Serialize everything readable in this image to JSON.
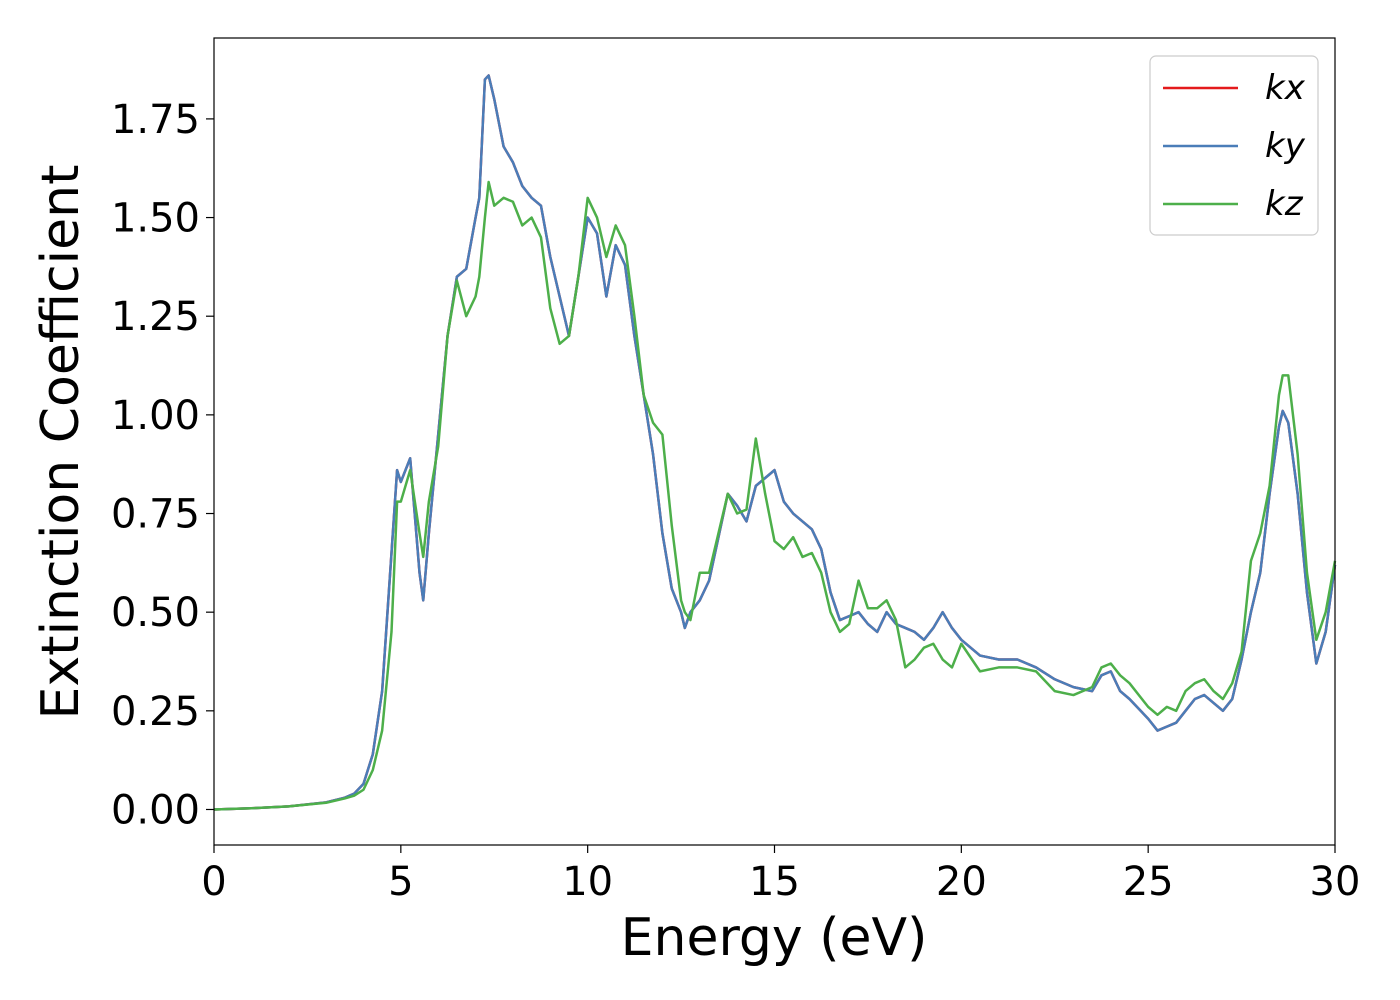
{
  "chart_data": {
    "type": "line",
    "x_label": "Energy (eV)",
    "y_label": "Extinction Coefficient",
    "x": [
      0,
      1,
      2,
      3,
      3.5,
      3.75,
      4,
      4.25,
      4.5,
      4.75,
      4.9,
      5.0,
      5.25,
      5.5,
      5.6,
      5.75,
      6,
      6.25,
      6.5,
      6.75,
      7,
      7.1,
      7.25,
      7.35,
      7.5,
      7.75,
      8,
      8.25,
      8.5,
      8.75,
      9,
      9.25,
      9.5,
      9.75,
      10,
      10.25,
      10.5,
      10.75,
      11,
      11.25,
      11.5,
      11.75,
      12,
      12.25,
      12.5,
      12.6,
      12.75,
      13,
      13.25,
      13.5,
      13.75,
      14,
      14.25,
      14.5,
      14.75,
      15,
      15.25,
      15.5,
      15.75,
      16,
      16.25,
      16.5,
      16.75,
      17,
      17.25,
      17.5,
      17.75,
      18,
      18.25,
      18.5,
      18.75,
      19,
      19.25,
      19.5,
      19.75,
      20,
      20.5,
      21,
      21.5,
      22,
      22.5,
      23,
      23.5,
      23.75,
      24,
      24.25,
      24.5,
      25,
      25.25,
      25.5,
      25.75,
      26,
      26.25,
      26.5,
      26.75,
      27,
      27.25,
      27.5,
      27.75,
      28,
      28.25,
      28.5,
      28.6,
      28.75,
      29,
      29.25,
      29.5,
      29.75,
      30
    ],
    "series": [
      {
        "name": "kx",
        "color": "#e41a1c",
        "values": [
          0,
          0.003,
          0.008,
          0.018,
          0.03,
          0.04,
          0.065,
          0.14,
          0.3,
          0.65,
          0.86,
          0.83,
          0.89,
          0.6,
          0.53,
          0.7,
          0.95,
          1.2,
          1.35,
          1.37,
          1.5,
          1.55,
          1.85,
          1.86,
          1.8,
          1.68,
          1.64,
          1.58,
          1.55,
          1.53,
          1.4,
          1.3,
          1.2,
          1.35,
          1.5,
          1.46,
          1.3,
          1.43,
          1.38,
          1.2,
          1.05,
          0.9,
          0.7,
          0.56,
          0.5,
          0.46,
          0.5,
          0.53,
          0.58,
          0.69,
          0.8,
          0.77,
          0.73,
          0.82,
          0.84,
          0.86,
          0.78,
          0.75,
          0.73,
          0.71,
          0.66,
          0.55,
          0.48,
          0.49,
          0.5,
          0.47,
          0.45,
          0.5,
          0.47,
          0.46,
          0.45,
          0.43,
          0.46,
          0.5,
          0.46,
          0.43,
          0.39,
          0.38,
          0.38,
          0.36,
          0.33,
          0.31,
          0.3,
          0.34,
          0.35,
          0.3,
          0.28,
          0.23,
          0.2,
          0.21,
          0.22,
          0.25,
          0.28,
          0.29,
          0.27,
          0.25,
          0.28,
          0.38,
          0.5,
          0.6,
          0.8,
          0.97,
          1.01,
          0.98,
          0.8,
          0.55,
          0.37,
          0.45,
          0.62
        ]
      },
      {
        "name": "ky",
        "color": "#4a7db8",
        "values": [
          0,
          0.003,
          0.008,
          0.018,
          0.03,
          0.04,
          0.065,
          0.14,
          0.3,
          0.65,
          0.86,
          0.83,
          0.89,
          0.6,
          0.53,
          0.7,
          0.95,
          1.2,
          1.35,
          1.37,
          1.5,
          1.55,
          1.85,
          1.86,
          1.8,
          1.68,
          1.64,
          1.58,
          1.55,
          1.53,
          1.4,
          1.3,
          1.2,
          1.35,
          1.5,
          1.46,
          1.3,
          1.43,
          1.38,
          1.2,
          1.05,
          0.9,
          0.7,
          0.56,
          0.5,
          0.46,
          0.5,
          0.53,
          0.58,
          0.69,
          0.8,
          0.77,
          0.73,
          0.82,
          0.84,
          0.86,
          0.78,
          0.75,
          0.73,
          0.71,
          0.66,
          0.55,
          0.48,
          0.49,
          0.5,
          0.47,
          0.45,
          0.5,
          0.47,
          0.46,
          0.45,
          0.43,
          0.46,
          0.5,
          0.46,
          0.43,
          0.39,
          0.38,
          0.38,
          0.36,
          0.33,
          0.31,
          0.3,
          0.34,
          0.35,
          0.3,
          0.28,
          0.23,
          0.2,
          0.21,
          0.22,
          0.25,
          0.28,
          0.29,
          0.27,
          0.25,
          0.28,
          0.38,
          0.5,
          0.6,
          0.8,
          0.97,
          1.01,
          0.98,
          0.8,
          0.55,
          0.37,
          0.45,
          0.62
        ]
      },
      {
        "name": "kz",
        "color": "#4daf4a",
        "values": [
          0,
          0.003,
          0.008,
          0.017,
          0.028,
          0.035,
          0.05,
          0.1,
          0.2,
          0.45,
          0.78,
          0.78,
          0.86,
          0.7,
          0.64,
          0.78,
          0.92,
          1.2,
          1.34,
          1.25,
          1.3,
          1.35,
          1.5,
          1.59,
          1.53,
          1.55,
          1.54,
          1.48,
          1.5,
          1.45,
          1.27,
          1.18,
          1.2,
          1.35,
          1.55,
          1.5,
          1.4,
          1.48,
          1.43,
          1.25,
          1.05,
          0.98,
          0.95,
          0.72,
          0.53,
          0.5,
          0.48,
          0.6,
          0.6,
          0.7,
          0.8,
          0.75,
          0.76,
          0.94,
          0.8,
          0.68,
          0.66,
          0.69,
          0.64,
          0.65,
          0.6,
          0.5,
          0.45,
          0.47,
          0.58,
          0.51,
          0.51,
          0.53,
          0.48,
          0.36,
          0.38,
          0.41,
          0.42,
          0.38,
          0.36,
          0.42,
          0.35,
          0.36,
          0.36,
          0.35,
          0.3,
          0.29,
          0.31,
          0.36,
          0.37,
          0.34,
          0.32,
          0.26,
          0.24,
          0.26,
          0.25,
          0.3,
          0.32,
          0.33,
          0.3,
          0.28,
          0.32,
          0.4,
          0.63,
          0.7,
          0.82,
          1.05,
          1.1,
          1.1,
          0.9,
          0.6,
          0.43,
          0.5,
          0.63
        ]
      }
    ],
    "xlim": [
      0,
      30
    ],
    "ylim": [
      -0.09,
      1.955
    ],
    "xticks": [
      0,
      5,
      10,
      15,
      20,
      25,
      30
    ],
    "yticks": [
      {
        "value": 0,
        "label": "0.00"
      },
      {
        "value": 0.25,
        "label": "0.25"
      },
      {
        "value": 0.5,
        "label": "0.50"
      },
      {
        "value": 0.75,
        "label": "0.75"
      },
      {
        "value": 1,
        "label": "1.00"
      },
      {
        "value": 1.25,
        "label": "1.25"
      },
      {
        "value": 1.5,
        "label": "1.50"
      },
      {
        "value": 1.75,
        "label": "1.75"
      }
    ],
    "legend": "upper right",
    "grid": false
  }
}
